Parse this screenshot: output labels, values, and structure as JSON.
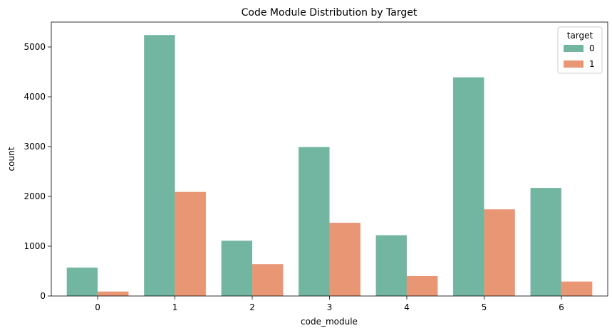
{
  "chart_data": {
    "type": "bar",
    "title": "Code Module Distribution by Target",
    "xlabel": "code_module",
    "ylabel": "count",
    "categories": [
      "0",
      "1",
      "2",
      "3",
      "4",
      "5",
      "6"
    ],
    "series": [
      {
        "name": "0",
        "values": [
          570,
          5240,
          1110,
          2990,
          1220,
          4390,
          2170
        ]
      },
      {
        "name": "1",
        "values": [
          90,
          2090,
          640,
          1470,
          400,
          1740,
          290
        ]
      }
    ],
    "ylim": [
      0,
      5500
    ],
    "yticks": [
      0,
      1000,
      2000,
      3000,
      4000,
      5000
    ],
    "legend": {
      "title": "target",
      "placement": "top-right"
    },
    "grid": false,
    "colors": [
      "#72b6a1",
      "#e99675"
    ]
  }
}
